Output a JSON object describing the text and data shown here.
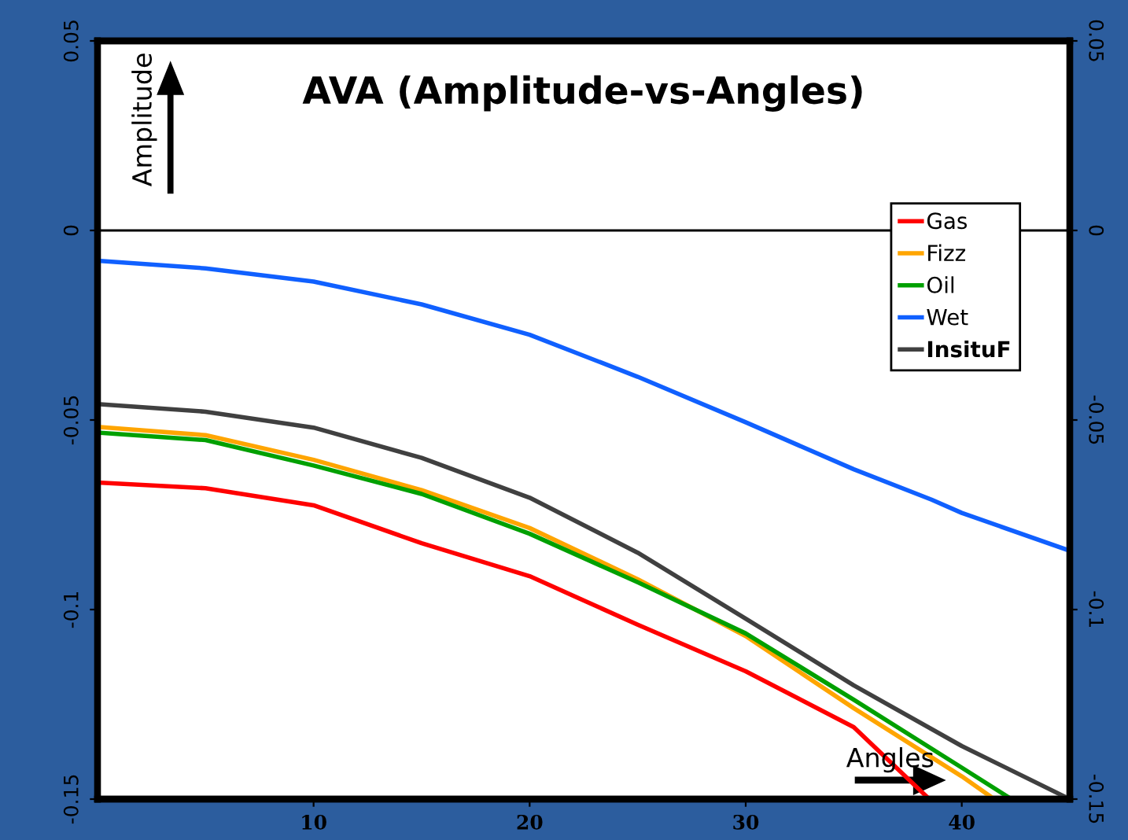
{
  "chart_data": {
    "type": "line",
    "title": "AVA (Amplitude-vs-Angles)",
    "xlabel": "Angles",
    "ylabel": "Amplitude",
    "xlim": [
      0,
      45
    ],
    "xticks": [
      10,
      20,
      30,
      40
    ],
    "ylim": [
      -0.15,
      0.05
    ],
    "yticks": [
      -0.15,
      -0.1,
      -0.05,
      0,
      0.05
    ],
    "y2lim": [
      -0.15,
      0.05
    ],
    "y2ticks": [
      -0.15,
      -0.1,
      -0.05,
      0,
      0.05
    ],
    "grid": false,
    "legend": "top right",
    "marker": "none",
    "line_style": "solid",
    "ref_lines": [
      {
        "axis": "y",
        "value": 0,
        "color": "#000000"
      }
    ],
    "series": [
      {
        "name": "Gas",
        "color": "#ff0000",
        "x": [
          0,
          5,
          10,
          15,
          20,
          25,
          30,
          35,
          38.5
        ],
        "values": [
          -0.0665,
          -0.068,
          -0.0725,
          -0.0825,
          -0.0912,
          -0.104,
          -0.1163,
          -0.131,
          -0.15
        ]
      },
      {
        "name": "Fizz",
        "color": "#ffa500",
        "x": [
          0,
          5,
          10,
          15,
          20,
          25,
          30,
          35,
          40,
          41.5
        ],
        "values": [
          -0.0518,
          -0.054,
          -0.0605,
          -0.0685,
          -0.0785,
          -0.092,
          -0.107,
          -0.126,
          -0.144,
          -0.15
        ]
      },
      {
        "name": "Oil",
        "color": "#00a000",
        "x": [
          0,
          5,
          10,
          15,
          20,
          25,
          30,
          35,
          40,
          42.3
        ],
        "values": [
          -0.0533,
          -0.0553,
          -0.062,
          -0.0695,
          -0.08,
          -0.0928,
          -0.1063,
          -0.1238,
          -0.1417,
          -0.15
        ]
      },
      {
        "name": "Wet",
        "color": "#1060ff",
        "x": [
          0,
          5,
          10,
          15,
          20,
          25,
          30,
          35,
          38.6,
          40,
          45
        ],
        "values": [
          -0.008,
          -0.01,
          -0.0135,
          -0.0195,
          -0.0275,
          -0.0386,
          -0.0506,
          -0.063,
          -0.071,
          -0.0745,
          -0.0845
        ]
      },
      {
        "name": "InsituF",
        "color": "#404040",
        "x": [
          0,
          5,
          10,
          15,
          20,
          25,
          30,
          35,
          40,
          45
        ],
        "values": [
          -0.0458,
          -0.0478,
          -0.052,
          -0.06,
          -0.0705,
          -0.085,
          -0.1024,
          -0.12,
          -0.136,
          -0.15
        ]
      }
    ]
  }
}
